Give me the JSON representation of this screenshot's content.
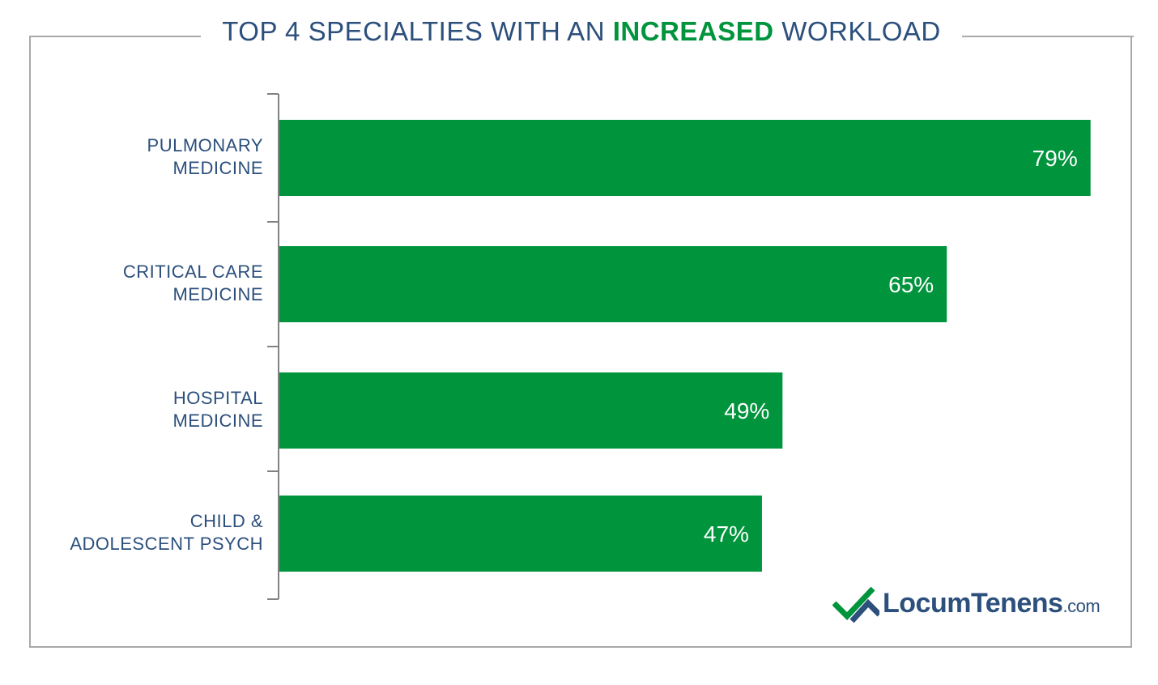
{
  "title": {
    "prefix": "TOP 4 SPECIALTIES WITH AN ",
    "highlight": "INCREASED",
    "suffix": " WORKLOAD"
  },
  "colors": {
    "bar": "#00943c",
    "text": "#2c4f7c",
    "axis": "#808285",
    "frame": "#a7a9ac"
  },
  "chart_data": {
    "type": "bar",
    "orientation": "horizontal",
    "title": "TOP 4 SPECIALTIES WITH AN INCREASED WORKLOAD",
    "categories": [
      [
        "PULMONARY",
        "MEDICINE"
      ],
      [
        "CRITICAL CARE",
        "MEDICINE"
      ],
      [
        "HOSPITAL",
        "MEDICINE"
      ],
      [
        "CHILD &",
        "ADOLESCENT PSYCH"
      ]
    ],
    "values": [
      79,
      65,
      49,
      47
    ],
    "value_labels": [
      "79%",
      "65%",
      "49%",
      "47%"
    ],
    "unit": "%",
    "xlabel": "",
    "ylabel": ""
  },
  "logo": {
    "name": "LocumTenens",
    "suffix": ".com"
  }
}
